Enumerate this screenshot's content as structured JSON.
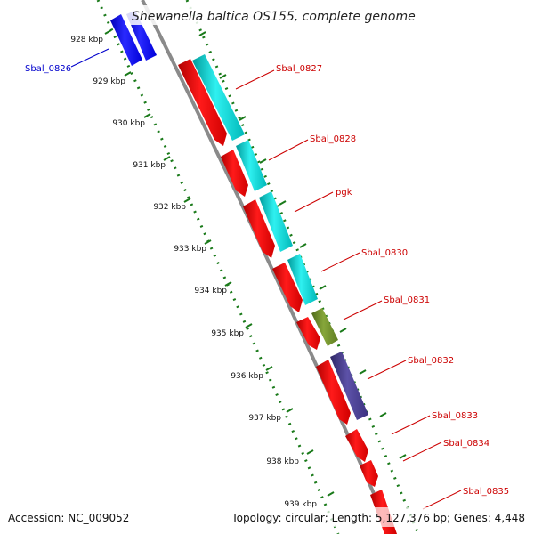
{
  "title": "Shewanella baltica OS155, complete genome",
  "footer": {
    "accession": "Accession: NC_009052",
    "topology": "Topology: circular; Length: 5,127,376 bp; Genes: 4,448"
  },
  "colors": {
    "reverse_gene": "#ff0000",
    "forward_gene": "#00d0d0",
    "blue_gene": "#0000ff",
    "olive_gene": "#6e8b2a",
    "purple_gene": "#4a3f8a",
    "backbone": "#8a8a8a",
    "tick": "#1a7a1a",
    "label_red": "#cc0000",
    "label_blue": "#0000cc"
  },
  "tick_labels": [
    "928 kbp",
    "929 kbp",
    "930 kbp",
    "931 kbp",
    "932 kbp",
    "933 kbp",
    "934 kbp",
    "935 kbp",
    "936 kbp",
    "937 kbp",
    "938 kbp",
    "939 kbp"
  ],
  "genes": [
    {
      "label": "Sbal_0826",
      "color": "blue"
    },
    {
      "label": "Sbal_0827",
      "color": "red"
    },
    {
      "label": "Sbal_0828",
      "color": "red"
    },
    {
      "label": "pgk",
      "color": "red"
    },
    {
      "label": "Sbal_0830",
      "color": "red"
    },
    {
      "label": "Sbal_0831",
      "color": "red"
    },
    {
      "label": "Sbal_0832",
      "color": "red"
    },
    {
      "label": "Sbal_0833",
      "color": "red"
    },
    {
      "label": "Sbal_0834",
      "color": "red"
    },
    {
      "label": "Sbal_0835",
      "color": "red"
    }
  ]
}
